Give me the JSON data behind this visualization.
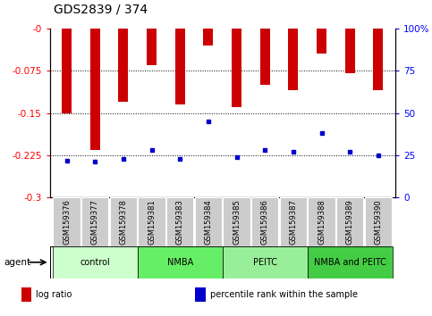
{
  "title": "GDS2839 / 374",
  "samples": [
    "GSM159376",
    "GSM159377",
    "GSM159378",
    "GSM159381",
    "GSM159383",
    "GSM159384",
    "GSM159385",
    "GSM159386",
    "GSM159387",
    "GSM159388",
    "GSM159389",
    "GSM159390"
  ],
  "log_ratio": [
    -0.15,
    -0.215,
    -0.13,
    -0.065,
    -0.135,
    -0.03,
    -0.14,
    -0.1,
    -0.11,
    -0.045,
    -0.08,
    -0.11
  ],
  "percentile": [
    22,
    21,
    23,
    28,
    23,
    45,
    24,
    28,
    27,
    38,
    27,
    25
  ],
  "ylim_left": [
    -0.3,
    0.0
  ],
  "yticks_left": [
    -0.3,
    -0.225,
    -0.15,
    -0.075,
    0.0
  ],
  "ytick_labels_left": [
    "-0.3",
    "-0.225",
    "-0.15",
    "-0.075",
    "-0"
  ],
  "ylim_right": [
    0,
    100
  ],
  "yticks_right": [
    0,
    25,
    50,
    75,
    100
  ],
  "ytick_labels_right": [
    "0",
    "25",
    "50",
    "75",
    "100%"
  ],
  "bar_color": "#cc0000",
  "marker_color": "#0000cc",
  "groups": [
    {
      "label": "control",
      "start": 0,
      "end": 3,
      "color": "#ccffcc"
    },
    {
      "label": "NMBA",
      "start": 3,
      "end": 6,
      "color": "#66ee66"
    },
    {
      "label": "PEITC",
      "start": 6,
      "end": 9,
      "color": "#99ee99"
    },
    {
      "label": "NMBA and PEITC",
      "start": 9,
      "end": 12,
      "color": "#44cc44"
    }
  ],
  "legend_items": [
    {
      "label": "log ratio",
      "color": "#cc0000"
    },
    {
      "label": "percentile rank within the sample",
      "color": "#0000cc"
    }
  ],
  "agent_label": "agent",
  "background_color": "#ffffff",
  "title_fontsize": 10,
  "tick_fontsize": 7.5,
  "bar_width": 0.35
}
